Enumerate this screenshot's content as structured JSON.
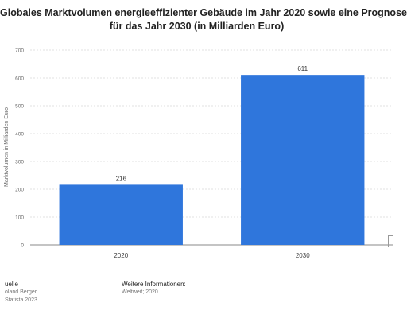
{
  "title_lines": [
    "Globales Marktvolumen energieeffizienter Gebäude im Jahr 2020 sowie eine Prognose",
    "für das Jahr 2030 (in Milliarden Euro)"
  ],
  "chart_data": {
    "type": "bar",
    "title": "Globales Marktvolumen energieeffizienter Gebäude im Jahr 2020 sowie eine Prognose für das Jahr 2030 (in Milliarden Euro)",
    "categories": [
      "2020",
      "2030"
    ],
    "values": [
      216,
      611
    ],
    "value_labels": [
      "216",
      "611"
    ],
    "xlabel": "",
    "ylabel": "Marktvolumen in Milliarden Euro",
    "ylim": [
      0,
      700
    ],
    "yticks": [
      0,
      100,
      200,
      300,
      400,
      500,
      600,
      700
    ],
    "grid": true,
    "bar_color": "#2f76dc"
  },
  "footer": {
    "source_heading": "uelle",
    "source_lines": [
      "oland Berger",
      "Statista 2023"
    ],
    "info_heading": "Weitere Informationen:",
    "info_lines": [
      "Weltweit; 2020"
    ]
  }
}
